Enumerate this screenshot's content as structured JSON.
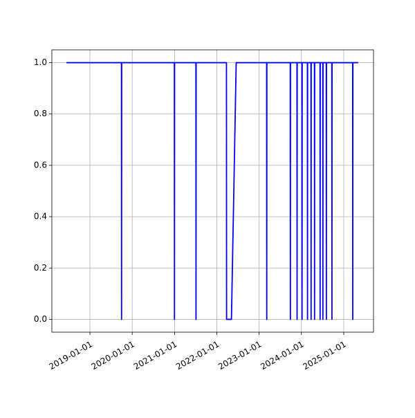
{
  "chart_data": {
    "type": "line",
    "color": "#0000ff",
    "grid": true,
    "x": [
      "2018-06-12",
      "2019-09-30",
      "2019-10-01",
      "2019-10-02",
      "2020-12-30",
      "2020-12-31",
      "2021-01-01",
      "2021-07-04",
      "2021-07-05",
      "2021-07-06",
      "2022-03-25",
      "2022-03-26",
      "2022-05-07",
      "2022-06-17",
      "2023-03-07",
      "2023-03-08",
      "2023-03-09",
      "2023-09-27",
      "2023-09-28",
      "2023-09-29",
      "2023-11-24",
      "2023-11-25",
      "2023-11-26",
      "2024-01-06",
      "2024-01-07",
      "2024-01-08",
      "2024-02-22",
      "2024-02-23",
      "2024-02-24",
      "2024-03-24",
      "2024-03-25",
      "2024-03-26",
      "2024-04-23",
      "2024-04-24",
      "2024-04-25",
      "2024-06-10",
      "2024-06-11",
      "2024-06-12",
      "2024-07-04",
      "2024-07-05",
      "2024-07-06",
      "2024-08-03",
      "2024-08-04",
      "2024-08-05",
      "2024-09-20",
      "2024-09-21",
      "2024-09-22",
      "2025-03-19",
      "2025-03-20",
      "2025-03-21",
      "2025-05-06"
    ],
    "values": [
      1,
      1,
      0,
      1,
      1,
      0,
      1,
      1,
      0,
      1,
      1,
      0,
      0,
      1,
      1,
      0,
      1,
      1,
      0,
      1,
      1,
      0,
      1,
      1,
      0,
      1,
      1,
      0,
      1,
      1,
      0,
      1,
      1,
      0,
      1,
      1,
      0,
      1,
      1,
      0,
      1,
      1,
      0,
      1,
      1,
      0,
      1,
      1,
      0,
      1,
      1
    ],
    "xlim": [
      "2018-02-06",
      "2025-09-15"
    ],
    "xticks": [
      "2019-01-01",
      "2020-01-01",
      "2021-01-01",
      "2022-01-01",
      "2023-01-01",
      "2024-01-01",
      "2025-01-01"
    ],
    "ylim": [
      -0.05,
      1.05
    ],
    "yticks": [
      {
        "value": 0,
        "label": "0.0"
      },
      0.2,
      0.4,
      0.6,
      0.8,
      {
        "value": 1,
        "label": "1.0"
      }
    ]
  }
}
